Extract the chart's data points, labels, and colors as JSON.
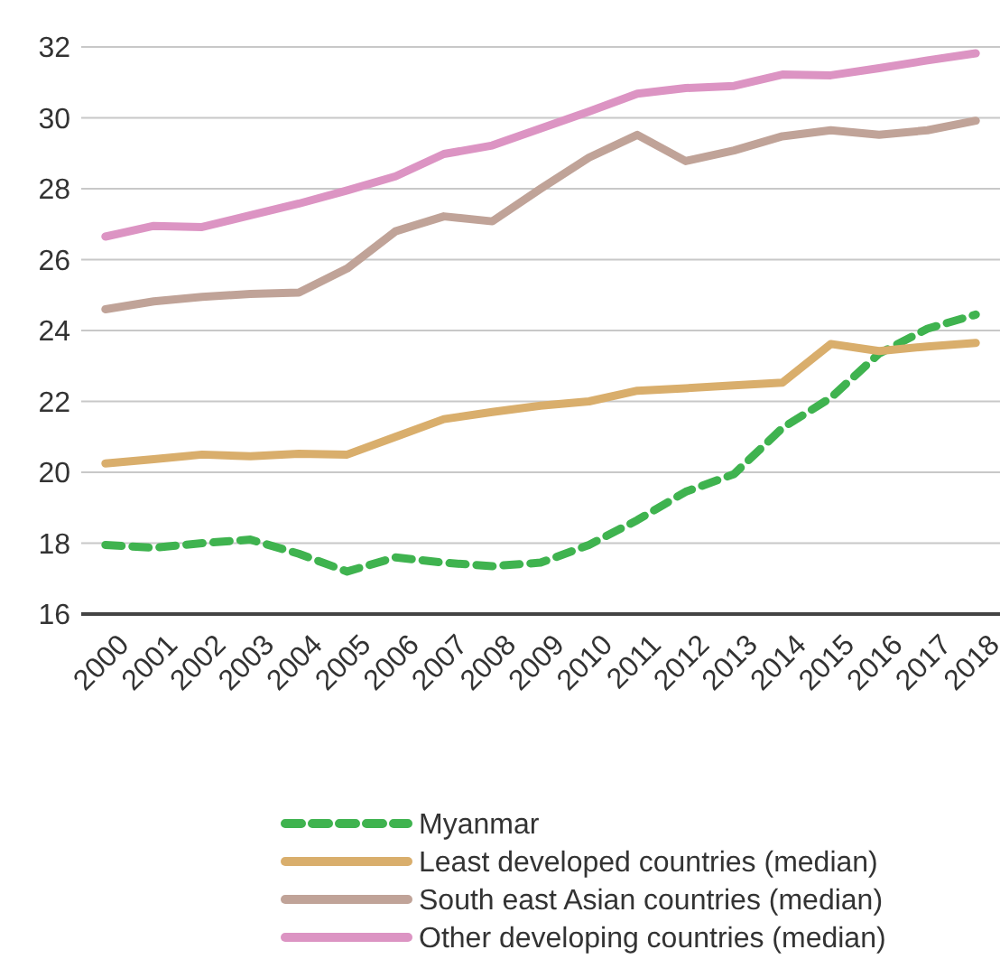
{
  "chart_data": {
    "type": "line",
    "categories": [
      "2000",
      "2001",
      "2002",
      "2003",
      "2004",
      "2005",
      "2006",
      "2007",
      "2008",
      "2009",
      "2010",
      "2011",
      "2012",
      "2013",
      "2014",
      "2015",
      "2016",
      "2017",
      "2018"
    ],
    "ylim": [
      16,
      32
    ],
    "yticks": [
      16,
      18,
      20,
      22,
      24,
      26,
      28,
      30,
      32
    ],
    "grid": "y",
    "legend": "bottom",
    "series": [
      {
        "name": "Myanmar",
        "color": "#3fb34f",
        "line_style": "dashed",
        "values": [
          17.95,
          17.87,
          18.0,
          18.1,
          17.7,
          17.2,
          17.6,
          17.45,
          17.35,
          17.45,
          17.95,
          18.65,
          19.45,
          19.95,
          21.25,
          22.1,
          23.35,
          24.05,
          24.45
        ]
      },
      {
        "name": "Least developed countries (median)",
        "color": "#d9ae6c",
        "values": [
          20.25,
          20.37,
          20.5,
          20.45,
          20.52,
          20.5,
          21.0,
          21.5,
          21.7,
          21.88,
          22.0,
          22.3,
          22.37,
          22.45,
          22.53,
          23.62,
          23.42,
          23.55,
          23.65
        ]
      },
      {
        "name": "South east Asian countries (median)",
        "color": "#c0a398",
        "values": [
          24.6,
          24.82,
          24.95,
          25.03,
          25.07,
          25.75,
          26.8,
          27.22,
          27.08,
          28.0,
          28.88,
          29.52,
          28.78,
          29.08,
          29.48,
          29.65,
          29.52,
          29.65,
          29.92
        ]
      },
      {
        "name": "Other developing countries (median)",
        "color": "#dc94c3",
        "values": [
          26.65,
          26.95,
          26.92,
          27.25,
          27.58,
          27.95,
          28.35,
          28.98,
          29.22,
          29.7,
          30.18,
          30.68,
          30.84,
          30.9,
          31.22,
          31.2,
          31.4,
          31.62,
          31.82
        ]
      }
    ]
  }
}
